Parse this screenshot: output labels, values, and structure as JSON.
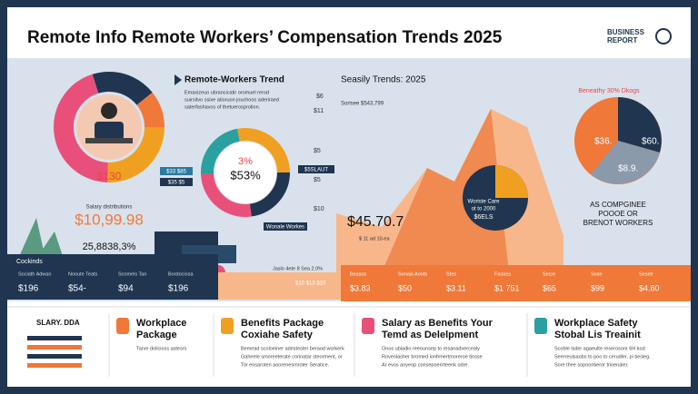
{
  "header": {
    "title": "Remote Info Remote Workers’ Compensation Trends 2025",
    "logo": [
      "BUSINESS",
      "REPORT"
    ]
  },
  "left_panel": {
    "donut_value": "$130",
    "caption": "Salary distributions",
    "big_value": "$10,99.98",
    "sub_value": "25,8838,3%"
  },
  "trend_panel": {
    "title": "Remote-Workers Trend",
    "text": [
      "Emaxizeuo ubrancicatir oromuel rerod",
      "suirsitvo ssixe atioruon jouchoos aderiraed",
      "saterfashavos of thetuerosprotion."
    ],
    "donut_labels": [
      "3%",
      "$53%"
    ],
    "left_tags": [
      "$33 $85",
      "$35 $5"
    ],
    "right_tags": [
      "$5SLAUT",
      "Wonale Workes"
    ]
  },
  "season_panel": {
    "title": "Seasily Trends: 2025",
    "subtitle": "Sorisee $543,799",
    "yaxis": [
      "$6",
      "$11",
      "$5",
      "$5",
      "$10"
    ],
    "inset": [
      "Woriste Care",
      "ot to 2000",
      "$6ELS"
    ],
    "big_value": "$45.70.7",
    "small_note": "$ 11 ad 10-ea"
  },
  "pie_panel": {
    "title": "Beneathy 30% Dkogs",
    "labels": [
      "$36.",
      "$60.",
      "$8.9."
    ],
    "caption": [
      "AS COMPGINEE",
      "POOOE OR",
      "BRENOT WORKERS"
    ]
  },
  "strip": {
    "heading": "Cockinds",
    "left_items": [
      {
        "label": "Sociath Adwan",
        "value": "$196"
      },
      {
        "label": "Nooute Teats",
        "value": "$54-"
      },
      {
        "label": "Scomels Tan",
        "value": "$94"
      },
      {
        "label": "Bordociosa",
        "value": "$196"
      }
    ],
    "mid_note": "Jaslo 4ete 8 Sea 2.0%",
    "mid_value": "$10 $13 $10",
    "right_items": [
      {
        "label": "Bessos",
        "value": "$3.83"
      },
      {
        "label": "Sonais Aoots",
        "value": "$50"
      },
      {
        "label": "Stes",
        "value": "$3.11"
      },
      {
        "label": "Fasoes",
        "value": "$1 751"
      },
      {
        "label": "Secre",
        "value": "$65"
      },
      {
        "label": "Sose",
        "value": "$99"
      },
      {
        "label": "Sesetr",
        "value": "$4.80"
      }
    ]
  },
  "cards": [
    {
      "title": [
        "SLARY. DDA"
      ],
      "text": []
    },
    {
      "title": [
        "Workplace",
        "Package"
      ],
      "text": [
        "Tarve dolicioss astesrs"
      ]
    },
    {
      "title": [
        "Benefits Package",
        "Coxiahe Safety"
      ],
      "text": [
        "Bemead scoloeiner adestester beraod workerk",
        "Gaheele smoreeterate corinatar steorment, or",
        "Tor ensaroten aoorenesmroter Seratice."
      ]
    },
    {
      "title": [
        "Salary as Benefits Your",
        "Temd as Delelpment"
      ],
      "text": [
        "Onos ubiadio reeounsep to resanadvercealy",
        "Rovenlasher bromed ionfrmertmoreroe tinsse",
        "Ar evos anyeop consepoerirteenk odre."
      ]
    },
    {
      "title": [
        "Workplace Safety",
        "Stobal Lis Treainit"
      ],
      "text": [
        "Scoble lsder agaeulte reserosonr 6H kod",
        "Seerreulsaobs to poo to cerudler, pi tiesleg.",
        "Sore thee sopnontieror trioenaler."
      ]
    }
  ]
}
